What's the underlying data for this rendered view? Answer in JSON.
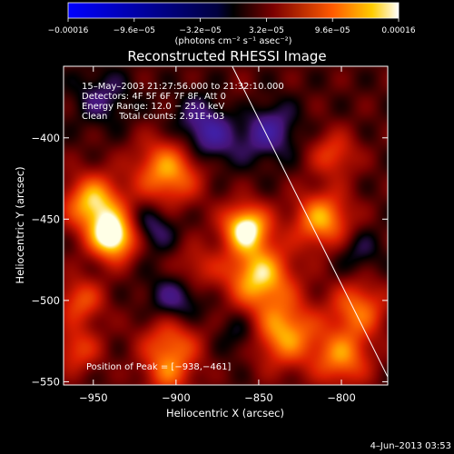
{
  "chart_data": {
    "type": "heatmap",
    "title": "Reconstructed RHESSI Image",
    "xlabel": "Heliocentric X (arcsec)",
    "ylabel": "Heliocentric Y (arcsec)",
    "xlim": [
      -968,
      -772
    ],
    "ylim": [
      -552,
      -356
    ],
    "x_ticks": [
      -950,
      -900,
      -850,
      -800
    ],
    "y_ticks": [
      -550,
      -500,
      -450,
      -400
    ],
    "x_tick_labels": [
      "−950",
      "−900",
      "−850",
      "−800"
    ],
    "y_tick_labels": [
      "−550",
      "−500",
      "−450",
      "−400"
    ],
    "colorbar": {
      "range": [
        -0.00016,
        0.00016
      ],
      "tick_values": [
        -0.00016,
        -9.6e-05,
        -3.2e-05,
        3.2e-05,
        9.6e-05,
        0.00016
      ],
      "tick_labels": [
        "−0.00016",
        "−9.6e−05",
        "−3.2e−05",
        "3.2e−05",
        "9.6e−05",
        "0.00016"
      ],
      "unit_label": "(photons cm⁻² s⁻¹ asec⁻²)"
    },
    "annotations": [
      "15–May–2003 21:27:56.000 to 21:32:10.000",
      "Detectors: 4F 5F 6F 7F 8F, Att 0",
      "Energy Range: 12.0 − 25.0 keV",
      "Clean    Total counts: 2.91E+03"
    ],
    "peak_label": "Position of Peak = [−938,−461]",
    "peak": [
      -938,
      -461
    ],
    "limb_line": [
      [
        -866,
        -356
      ],
      [
        -772,
        -547
      ]
    ],
    "peaks": [
      [
        -938,
        -461,
        1.0,
        10
      ],
      [
        -950,
        -440,
        0.8,
        12
      ],
      [
        -905,
        -420,
        0.7,
        14
      ],
      [
        -858,
        -455,
        0.92,
        10
      ],
      [
        -850,
        -485,
        0.8,
        14
      ],
      [
        -835,
        -520,
        0.7,
        14
      ],
      [
        -800,
        -535,
        0.6,
        12
      ],
      [
        -812,
        -450,
        0.7,
        12
      ],
      [
        -790,
        -505,
        0.55,
        12
      ],
      [
        -805,
        -410,
        0.4,
        10
      ],
      [
        -903,
        -525,
        0.5,
        13
      ],
      [
        -888,
        -480,
        0.3,
        10
      ],
      [
        -960,
        -530,
        0.4,
        10
      ],
      [
        -958,
        -500,
        0.45,
        10
      ],
      [
        -905,
        -545,
        0.4,
        10
      ],
      [
        -865,
        -385,
        0.2,
        12
      ],
      [
        -900,
        -500,
        -0.35,
        12
      ],
      [
        -880,
        -395,
        -0.5,
        14
      ],
      [
        -845,
        -395,
        -0.4,
        12
      ],
      [
        -915,
        -455,
        -0.3,
        10
      ],
      [
        -860,
        -520,
        -0.25,
        10
      ],
      [
        -790,
        -470,
        -0.2,
        10
      ],
      [
        -945,
        -375,
        -0.25,
        12
      ]
    ],
    "background": 0.12,
    "date": "4–Jun–2013 03:53"
  }
}
